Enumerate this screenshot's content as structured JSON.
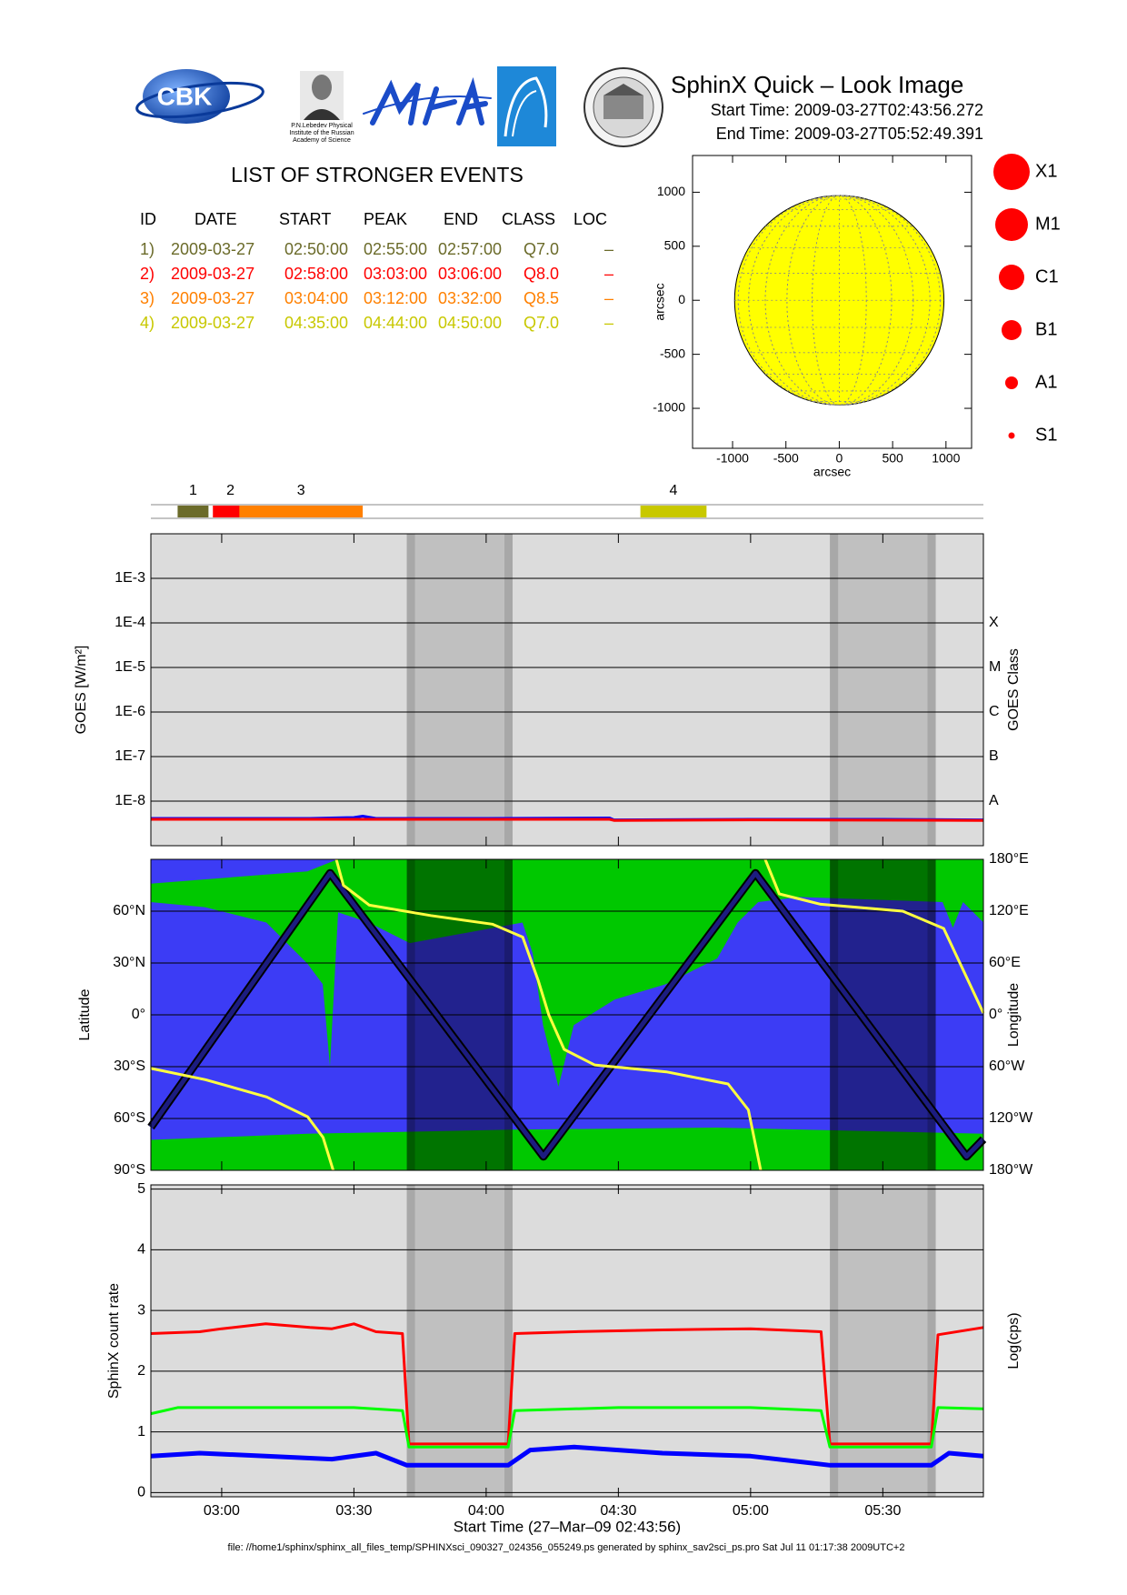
{
  "header": {
    "logo_text": "CBK",
    "institute": [
      "P.N.Lebedev Physical",
      "Institute of the Russian",
      "Academy of Science"
    ],
    "title": "SphinX Quick – Look Image",
    "start_time": "Start Time: 2009-03-27T02:43:56.272",
    "end_time": "End Time: 2009-03-27T05:52:49.391"
  },
  "events": {
    "title": "LIST OF STRONGER EVENTS",
    "columns": [
      "ID",
      "DATE",
      "START",
      "PEAK",
      "END",
      "CLASS",
      "LOC"
    ],
    "rows": [
      [
        "1)",
        "2009-03-27",
        "02:50:00",
        "02:55:00",
        "02:57:00",
        "Q7.0",
        "–"
      ],
      [
        "2)",
        "2009-03-27",
        "02:58:00",
        "03:03:00",
        "03:06:00",
        "Q8.0",
        "–"
      ],
      [
        "3)",
        "2009-03-27",
        "03:04:00",
        "03:12:00",
        "03:32:00",
        "Q8.5",
        "–"
      ],
      [
        "4)",
        "2009-03-27",
        "04:35:00",
        "04:44:00",
        "04:50:00",
        "Q7.0",
        "–"
      ]
    ],
    "colors": [
      "#6b6b2a",
      "#ff0000",
      "#ff8000",
      "#c8c800"
    ],
    "bar_labels": [
      "1",
      "2",
      "3",
      "4"
    ]
  },
  "size_legend": {
    "labels": [
      "X1",
      "M1",
      "C1",
      "B1",
      "A1",
      "S1"
    ],
    "color": "#ff0000"
  },
  "chart_data": [
    {
      "type": "disk",
      "xlabel": "arcsec",
      "ylabel": "arcsec",
      "xlim": [
        -1375,
        1240
      ],
      "ylim": [
        -1370,
        1340
      ],
      "xticks": [
        -1000,
        -500,
        0,
        500,
        1000
      ],
      "yticks": [
        -1000,
        -500,
        0,
        500,
        1000
      ],
      "radius": 975,
      "color": "#ffff00"
    },
    {
      "type": "line",
      "log_y": true,
      "ylabel": "GOES [W/m²]",
      "y2label": "GOES Class",
      "background": "#dcdcdc",
      "xlim": [
        163.93,
        352.82
      ],
      "ylim": [
        1e-09,
        0.01
      ],
      "yticks": [
        {
          "value": 0.001,
          "label": "1E-3"
        },
        {
          "value": 0.0001,
          "label": "1E-4"
        },
        {
          "value": 1e-05,
          "label": "1E-5"
        },
        {
          "value": 1e-06,
          "label": "1E-6"
        },
        {
          "value": 1e-07,
          "label": "1E-7"
        },
        {
          "value": 1e-08,
          "label": "1E-8"
        }
      ],
      "y2ticks": [
        {
          "value": 0.0001,
          "label": "X"
        },
        {
          "value": 1e-05,
          "label": "M"
        },
        {
          "value": 1e-06,
          "label": "C"
        },
        {
          "value": 1e-07,
          "label": "B"
        },
        {
          "value": 1e-08,
          "label": "A"
        }
      ],
      "shaded": [
        [
          222,
          246
        ],
        [
          318,
          342
        ]
      ],
      "series": [
        {
          "color": "#0000ff",
          "x": [
            163.93,
            200,
            210,
            212,
            215,
            240,
            268,
            269,
            300,
            330,
            352.82
          ],
          "values": [
            4.1e-09,
            4.1e-09,
            4.3e-09,
            4.6e-09,
            4.1e-09,
            4.1e-09,
            4.2e-09,
            3.8e-09,
            3.9e-09,
            3.9e-09,
            3.8e-09
          ]
        },
        {
          "color": "#ff0000",
          "x": [
            163.93,
            200,
            250,
            268,
            269,
            300,
            352.82
          ],
          "values": [
            3.9e-09,
            3.9e-09,
            3.9e-09,
            3.9e-09,
            3.7e-09,
            3.8e-09,
            3.7e-09
          ]
        }
      ]
    },
    {
      "type": "map",
      "ylabel": "Latitude",
      "y2label": "Longitude",
      "background": "#3c3cf5",
      "xlim": [
        163.93,
        352.82
      ],
      "ylim": [
        -90,
        90
      ],
      "yticks": [
        {
          "value": 60,
          "label": "60°N"
        },
        {
          "value": 30,
          "label": "30°N"
        },
        {
          "value": 0,
          "label": "0°"
        },
        {
          "value": -30,
          "label": "30°S"
        },
        {
          "value": -60,
          "label": "60°S"
        },
        {
          "value": -90,
          "label": "90°S"
        }
      ],
      "y2lim": [
        -180,
        180
      ],
      "y2ticks": [
        {
          "value": 180,
          "label": "180°E"
        },
        {
          "value": 120,
          "label": "120°E"
        },
        {
          "value": 60,
          "label": "60°E"
        },
        {
          "value": 0,
          "label": "0°"
        },
        {
          "value": -60,
          "label": "60°W"
        },
        {
          "value": -120,
          "label": "120°W"
        },
        {
          "value": -180,
          "label": "180°W"
        }
      ],
      "shaded": [
        [
          222,
          246
        ],
        [
          318,
          342
        ]
      ],
      "series": [
        {
          "color": "#1c1c80",
          "x": [
            163.93,
            204.6,
            253,
            301.1,
            349,
            352.82
          ],
          "values": [
            -65,
            82,
            -82,
            82,
            -82,
            -72
          ]
        },
        {
          "color": "#ffff40",
          "axis": "y2",
          "x": [
            163.93,
            176.3,
            190.2,
            199.5,
            203,
            205.3,
            205.5,
            206,
            207.6,
            213.5,
            227.4,
            241.4,
            248.3,
            251.8,
            254.2,
            257.7,
            264.6,
            280.9,
            294.9,
            299.5,
            302.3,
            302.8,
            303.3,
            306.5,
            315.9,
            334.5,
            343.8,
            348.4,
            352.82
          ],
          "values": [
            -62,
            -75,
            -95,
            -118,
            -142,
            -180,
            null,
            180,
            150,
            127,
            115,
            105,
            90,
            40,
            0,
            -40,
            -58,
            -66,
            -80,
            -110,
            -180,
            null,
            180,
            140,
            128,
            120,
            100,
            50,
            2
          ]
        }
      ]
    },
    {
      "type": "line",
      "xlabel": "Start Time (27–Mar–09 02:43:56)",
      "ylabel": "SphinX count rate",
      "y2label": "Log(cps)",
      "background": "#dcdcdc",
      "xlim": [
        163.93,
        352.82
      ],
      "ylim": [
        -0.07,
        5.07
      ],
      "xticks": [
        {
          "value": 180,
          "label": "03:00"
        },
        {
          "value": 210,
          "label": "03:30"
        },
        {
          "value": 240,
          "label": "04:00"
        },
        {
          "value": 270,
          "label": "04:30"
        },
        {
          "value": 300,
          "label": "05:00"
        },
        {
          "value": 330,
          "label": "05:30"
        }
      ],
      "yticks": [
        0,
        1,
        2,
        3,
        4,
        5
      ],
      "shaded": [
        [
          222,
          246
        ],
        [
          318,
          342
        ]
      ],
      "series": [
        {
          "color": "#ff0000",
          "x": [
            163.93,
            175,
            180,
            190,
            200,
            205,
            210,
            215,
            221,
            222.5,
            245,
            246.5,
            260,
            280,
            300,
            316,
            318,
            341,
            342.5,
            352.82
          ],
          "values": [
            2.62,
            2.65,
            2.7,
            2.78,
            2.72,
            2.7,
            2.78,
            2.65,
            2.62,
            0.8,
            0.8,
            2.62,
            2.65,
            2.68,
            2.7,
            2.65,
            0.8,
            0.8,
            2.6,
            2.72
          ]
        },
        {
          "color": "#00ff00",
          "x": [
            163.93,
            170,
            190,
            210,
            221,
            222.5,
            245,
            246.5,
            270,
            300,
            316,
            318,
            341,
            342.5,
            352.82
          ],
          "values": [
            1.3,
            1.4,
            1.4,
            1.4,
            1.35,
            0.75,
            0.75,
            1.35,
            1.4,
            1.4,
            1.35,
            0.75,
            0.75,
            1.4,
            1.38
          ]
        },
        {
          "color": "#0000ff",
          "x": [
            163.93,
            175,
            190,
            205,
            215,
            222,
            245,
            250,
            260,
            280,
            300,
            318,
            341,
            345,
            352.82
          ],
          "values": [
            0.6,
            0.65,
            0.6,
            0.55,
            0.65,
            0.45,
            0.45,
            0.7,
            0.75,
            0.65,
            0.6,
            0.45,
            0.45,
            0.65,
            0.6
          ]
        }
      ]
    }
  ],
  "footer": "file: //home1/sphinx/sphinx_all_files_temp/SPHINXsci_090327_024356_055249.ps generated by sphinx_sav2sci_ps.pro Sat Jul 11 01:17:38 2009UTC+2"
}
